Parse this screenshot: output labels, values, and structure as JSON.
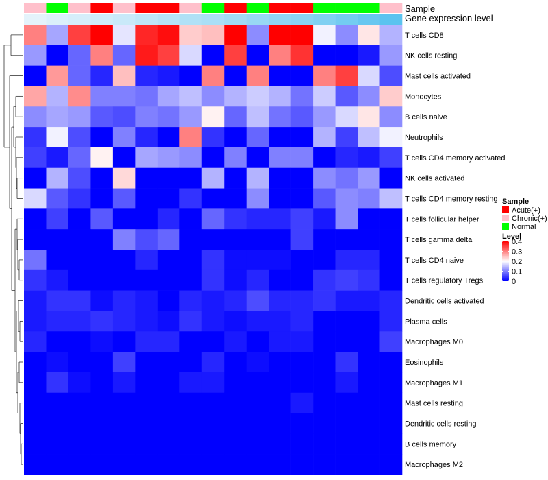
{
  "chart_data": {
    "type": "heatmap",
    "annotation_labels": [
      "Sample",
      "Gene expression level"
    ],
    "sample_groups": [
      "Chronic(+)",
      "Normal",
      "Chronic(+)",
      "Acute(+)",
      "Chronic(+)",
      "Acute(+)",
      "Acute(+)",
      "Chronic(+)",
      "Normal",
      "Acute(+)",
      "Normal",
      "Acute(+)",
      "Acute(+)",
      "Normal",
      "Normal",
      "Normal",
      "Chronic(+)"
    ],
    "expression_annotation": [
      0.25,
      0.28,
      0.3,
      0.32,
      0.34,
      0.37,
      0.4,
      0.42,
      0.44,
      0.47,
      0.5,
      0.53,
      0.55,
      0.58,
      0.62,
      0.66,
      0.7
    ],
    "rows": [
      "T cells CD8",
      "NK cells resting",
      "Mast cells activated",
      "Monocytes",
      "B cells naive",
      "Neutrophils",
      "T cells CD4 memory activated",
      "NK cells activated",
      "T cells CD4 memory resting",
      "T cells follicular helper",
      "T cells gamma delta",
      "T cells CD4 naive",
      "T cells regulatory  Tregs",
      "Dendritic cells activated",
      "Plasma cells",
      "Macrophages M0",
      "Eosinophils",
      "Macrophages M1",
      "Mast cells resting",
      "Dendritic cells resting",
      "B cells memory",
      "Macrophages M2"
    ],
    "values": [
      [
        0.3,
        0.13,
        0.35,
        0.4,
        0.18,
        0.37,
        0.39,
        0.24,
        0.25,
        0.4,
        0.11,
        0.4,
        0.4,
        0.19,
        0.11,
        0.22,
        0.14
      ],
      [
        0.12,
        0.0,
        0.08,
        0.3,
        0.08,
        0.38,
        0.35,
        0.17,
        0.0,
        0.35,
        0.0,
        0.3,
        0.36,
        0.0,
        0.0,
        0.02,
        0.12
      ],
      [
        0.0,
        0.28,
        0.08,
        0.03,
        0.25,
        0.03,
        0.02,
        0.0,
        0.3,
        0.0,
        0.3,
        0.0,
        0.0,
        0.3,
        0.35,
        0.17,
        0.06
      ],
      [
        0.27,
        0.14,
        0.29,
        0.1,
        0.1,
        0.09,
        0.13,
        0.15,
        0.11,
        0.14,
        0.16,
        0.14,
        0.09,
        0.16,
        0.07,
        0.11,
        0.24
      ],
      [
        0.11,
        0.13,
        0.12,
        0.07,
        0.06,
        0.1,
        0.09,
        0.12,
        0.21,
        0.08,
        0.15,
        0.09,
        0.07,
        0.12,
        0.17,
        0.22,
        0.11
      ],
      [
        0.04,
        0.19,
        0.06,
        0.0,
        0.1,
        0.03,
        0.0,
        0.3,
        0.04,
        0.0,
        0.08,
        0.0,
        0.0,
        0.14,
        0.05,
        0.15,
        0.19
      ],
      [
        0.05,
        0.02,
        0.08,
        0.21,
        0.0,
        0.13,
        0.12,
        0.11,
        0.0,
        0.1,
        0.0,
        0.1,
        0.1,
        0.0,
        0.03,
        0.02,
        0.05
      ],
      [
        0.0,
        0.14,
        0.06,
        0.0,
        0.23,
        0.0,
        0.0,
        0.0,
        0.14,
        0.0,
        0.14,
        0.0,
        0.0,
        0.11,
        0.09,
        0.12,
        0.0
      ],
      [
        0.17,
        0.07,
        0.04,
        0.0,
        0.07,
        0.0,
        0.0,
        0.04,
        0.0,
        0.0,
        0.11,
        0.0,
        0.0,
        0.07,
        0.11,
        0.1,
        0.15
      ],
      [
        0.0,
        0.05,
        0.0,
        0.07,
        0.0,
        0.0,
        0.03,
        0.0,
        0.08,
        0.04,
        0.03,
        0.03,
        0.05,
        0.02,
        0.11,
        0.0,
        0.0
      ],
      [
        0.0,
        0.0,
        0.0,
        0.0,
        0.1,
        0.06,
        0.08,
        0.0,
        0.0,
        0.0,
        0.0,
        0.0,
        0.05,
        0.0,
        0.0,
        0.0,
        0.0
      ],
      [
        0.09,
        0.0,
        0.0,
        0.0,
        0.0,
        0.03,
        0.0,
        0.0,
        0.04,
        0.01,
        0.01,
        0.01,
        0.0,
        0.0,
        0.03,
        0.03,
        0.0
      ],
      [
        0.04,
        0.02,
        0.0,
        0.0,
        0.0,
        0.0,
        0.0,
        0.0,
        0.04,
        0.01,
        0.03,
        0.0,
        0.0,
        0.04,
        0.05,
        0.04,
        0.0
      ],
      [
        0.02,
        0.04,
        0.04,
        0.01,
        0.03,
        0.02,
        0.0,
        0.03,
        0.02,
        0.03,
        0.06,
        0.03,
        0.03,
        0.04,
        0.02,
        0.02,
        0.03
      ],
      [
        0.02,
        0.03,
        0.03,
        0.04,
        0.03,
        0.02,
        0.01,
        0.04,
        0.02,
        0.01,
        0.02,
        0.02,
        0.03,
        0.0,
        0.0,
        0.0,
        0.03
      ],
      [
        0.03,
        0.0,
        0.0,
        0.01,
        0.0,
        0.03,
        0.03,
        0.0,
        0.0,
        0.02,
        0.0,
        0.02,
        0.02,
        0.0,
        0.0,
        0.0,
        0.05
      ],
      [
        0.0,
        0.01,
        0.0,
        0.0,
        0.05,
        0.0,
        0.0,
        0.0,
        0.03,
        0.0,
        0.01,
        0.0,
        0.0,
        0.0,
        0.04,
        0.0,
        0.0
      ],
      [
        0.0,
        0.04,
        0.01,
        0.0,
        0.02,
        0.0,
        0.0,
        0.02,
        0.02,
        0.0,
        0.0,
        0.0,
        0.0,
        0.0,
        0.02,
        0.0,
        0.0
      ],
      [
        0.0,
        0.0,
        0.0,
        0.0,
        0.0,
        0.0,
        0.0,
        0.0,
        0.0,
        0.0,
        0.0,
        0.0,
        0.02,
        0.0,
        0.0,
        0.0,
        0.0
      ],
      [
        0.0,
        0.0,
        0.0,
        0.0,
        0.0,
        0.0,
        0.0,
        0.0,
        0.0,
        0.0,
        0.0,
        0.0,
        0.0,
        0.0,
        0.0,
        0.0,
        0.0
      ],
      [
        0.0,
        0.0,
        0.0,
        0.0,
        0.0,
        0.0,
        0.0,
        0.0,
        0.0,
        0.0,
        0.0,
        0.0,
        0.0,
        0.0,
        0.0,
        0.0,
        0.0
      ],
      [
        0.0,
        0.0,
        0.0,
        0.0,
        0.0,
        0.0,
        0.0,
        0.0,
        0.0,
        0.0,
        0.0,
        0.0,
        0.0,
        0.0,
        0.0,
        0.0,
        0.0
      ]
    ],
    "value_range": [
      0,
      0.4
    ],
    "colors": {
      "low": "#0000FF",
      "mid": "#FFFFFF",
      "high": "#FF0000",
      "mid_value": 0.2
    },
    "dendrogram": "rows"
  },
  "legend": {
    "sample": {
      "title": "Sample",
      "entries": [
        {
          "label": "Acute(+)",
          "color": "#FF0000"
        },
        {
          "label": "Chronic(+)",
          "color": "#FFC0CB"
        },
        {
          "label": "Normal",
          "color": "#00FF00"
        }
      ]
    },
    "level": {
      "title": "Level",
      "ticks": [
        "0.4",
        "0.3",
        "0.2",
        "0.1",
        "0"
      ],
      "tick_values": [
        0.4,
        0.3,
        0.2,
        0.1,
        0
      ]
    }
  },
  "annotation_colors": {
    "expression_low": "#E4F3FB",
    "expression_high": "#5BC3EF"
  }
}
